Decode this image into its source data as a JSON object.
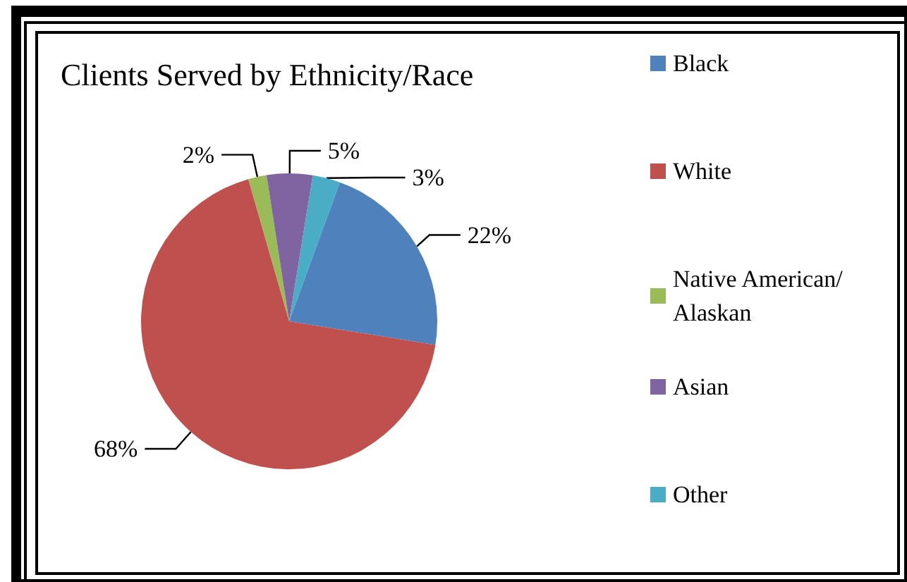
{
  "chart_data": {
    "type": "pie",
    "title": "Clients Served by Ethnicity/Race",
    "categories": [
      "Black",
      "White",
      "Native American/Alaskan",
      "Asian",
      "Other"
    ],
    "values": [
      22,
      68,
      2,
      5,
      3
    ],
    "colors": [
      "#4f81bd",
      "#c0504d",
      "#9bbb59",
      "#8064a2",
      "#4bacc6"
    ],
    "value_labels": [
      "22%",
      "68%",
      "2%",
      "5%",
      "3%"
    ],
    "legend": "right"
  }
}
